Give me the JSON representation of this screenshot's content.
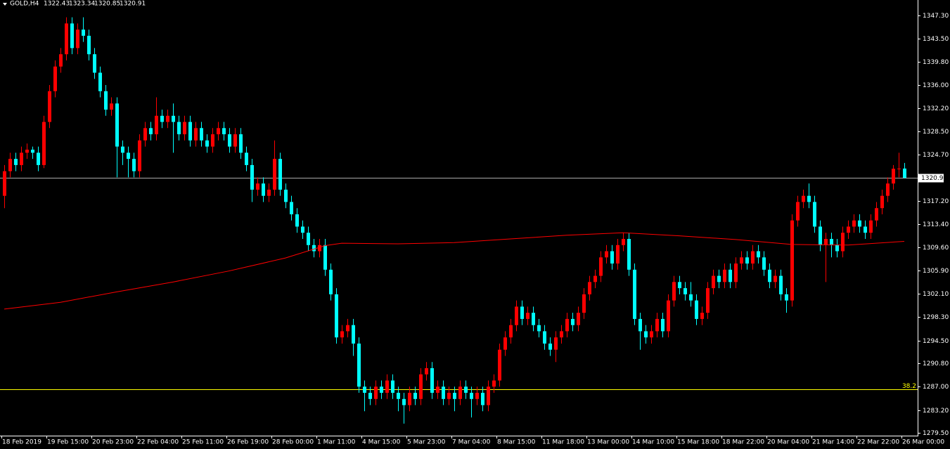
{
  "chart_data": {
    "type": "candlestick",
    "symbol": "GOLD,H4",
    "up_color": "#ff0000",
    "down_color": "#00ffff",
    "background": "#000000",
    "grid": false,
    "ylim": [
      1279.04,
      1349.81
    ],
    "yticks": [
      {
        "value": 1347.3,
        "label": "1347.30"
      },
      {
        "value": 1343.5,
        "label": "1343.50"
      },
      {
        "value": 1339.8,
        "label": "1339.80"
      },
      {
        "value": 1336.0,
        "label": "1336.00"
      },
      {
        "value": 1332.2,
        "label": "1332.20"
      },
      {
        "value": 1328.5,
        "label": "1328.50"
      },
      {
        "value": 1324.7,
        "label": "1324.70"
      },
      {
        "value": 1317.2,
        "label": "1317.20"
      },
      {
        "value": 1313.4,
        "label": "1313.40"
      },
      {
        "value": 1309.6,
        "label": "1309.60"
      },
      {
        "value": 1305.9,
        "label": "1305.90"
      },
      {
        "value": 1302.1,
        "label": "1302.10"
      },
      {
        "value": 1298.3,
        "label": "1298.30"
      },
      {
        "value": 1294.5,
        "label": "1294.50"
      },
      {
        "value": 1290.8,
        "label": "1290.80"
      },
      {
        "value": 1287.0,
        "label": "1287.00"
      },
      {
        "value": 1283.2,
        "label": "1283.20"
      },
      {
        "value": 1279.5,
        "label": "1279.50"
      }
    ],
    "fib_level": {
      "label": "38.2",
      "price": 1286.6,
      "color": "#ffff00"
    },
    "categories": [
      "18 Feb 2019",
      null,
      null,
      null,
      null,
      null,
      null,
      null,
      "19 Feb 15:00",
      null,
      null,
      null,
      null,
      null,
      null,
      null,
      "20 Feb 23:00",
      null,
      null,
      null,
      null,
      null,
      null,
      null,
      "22 Feb 04:00",
      null,
      null,
      null,
      null,
      null,
      null,
      null,
      "25 Feb 11:00",
      null,
      null,
      null,
      null,
      null,
      null,
      null,
      "26 Feb 19:00",
      null,
      null,
      null,
      null,
      null,
      null,
      null,
      "28 Feb 00:00",
      null,
      null,
      null,
      null,
      null,
      null,
      null,
      "1 Mar 11:00",
      null,
      null,
      null,
      null,
      null,
      null,
      null,
      "4 Mar 15:00",
      null,
      null,
      null,
      null,
      null,
      null,
      null,
      "5 Mar 23:00",
      null,
      null,
      null,
      null,
      null,
      null,
      null,
      "7 Mar 04:00",
      null,
      null,
      null,
      null,
      null,
      null,
      null,
      "8 Mar 15:00",
      null,
      null,
      null,
      null,
      null,
      null,
      null,
      "11 Mar 18:00",
      null,
      null,
      null,
      null,
      null,
      null,
      null,
      "13 Mar 00:00",
      null,
      null,
      null,
      null,
      null,
      null,
      null,
      "14 Mar 10:00",
      null,
      null,
      null,
      null,
      null,
      null,
      null,
      "15 Mar 18:00",
      null,
      null,
      null,
      null,
      null,
      null,
      null,
      "18 Mar 22:00",
      null,
      null,
      null,
      null,
      null,
      null,
      null,
      "20 Mar 04:00",
      null,
      null,
      null,
      null,
      null,
      null,
      null,
      "21 Mar 14:00",
      null,
      null,
      null,
      null,
      null,
      null,
      null,
      "22 Mar 22:00",
      null,
      null,
      null,
      null,
      null,
      null,
      null,
      "26 Mar 00:00"
    ],
    "candles": [
      [
        1318,
        1323,
        1316,
        1322
      ],
      [
        1322,
        1325,
        1321,
        1324
      ],
      [
        1324,
        1325,
        1322,
        1323
      ],
      [
        1323,
        1326,
        1322,
        1325
      ],
      [
        1325,
        1326.5,
        1324,
        1325.5
      ],
      [
        1325.5,
        1326,
        1324,
        1325
      ],
      [
        1325,
        1326,
        1322,
        1323
      ],
      [
        1323,
        1331,
        1322.5,
        1330
      ],
      [
        1330,
        1336,
        1329,
        1335
      ],
      [
        1335,
        1340,
        1334,
        1339
      ],
      [
        1339,
        1342,
        1338,
        1341
      ],
      [
        1341,
        1347,
        1340,
        1346
      ],
      [
        1346,
        1347,
        1341,
        1342
      ],
      [
        1342,
        1346,
        1341,
        1345
      ],
      [
        1345,
        1347,
        1343,
        1344
      ],
      [
        1344,
        1345,
        1340,
        1341
      ],
      [
        1341,
        1342,
        1337,
        1338
      ],
      [
        1338,
        1339,
        1334,
        1335
      ],
      [
        1335,
        1336,
        1331,
        1332
      ],
      [
        1332,
        1334,
        1331,
        1333
      ],
      [
        1333,
        1334,
        1321,
        1326
      ],
      [
        1326,
        1327,
        1323,
        1325
      ],
      [
        1325,
        1326,
        1321,
        1324
      ],
      [
        1324,
        1325,
        1321,
        1322
      ],
      [
        1322,
        1328,
        1321,
        1327
      ],
      [
        1327,
        1330,
        1326,
        1329
      ],
      [
        1329,
        1330,
        1327,
        1328
      ],
      [
        1328,
        1334,
        1327,
        1331
      ],
      [
        1331,
        1332,
        1329,
        1330
      ],
      [
        1330,
        1332,
        1329,
        1331
      ],
      [
        1331,
        1333,
        1325,
        1330
      ],
      [
        1330,
        1331,
        1327,
        1328
      ],
      [
        1328,
        1331,
        1327,
        1330
      ],
      [
        1330,
        1331,
        1326,
        1327
      ],
      [
        1327,
        1330,
        1326,
        1329
      ],
      [
        1329,
        1330,
        1326,
        1327
      ],
      [
        1327,
        1328,
        1325,
        1326
      ],
      [
        1326,
        1329,
        1325,
        1328
      ],
      [
        1328,
        1330,
        1327,
        1329
      ],
      [
        1329,
        1330,
        1327,
        1328
      ],
      [
        1328,
        1329,
        1325,
        1326
      ],
      [
        1326,
        1329,
        1325,
        1328
      ],
      [
        1328,
        1329,
        1324,
        1325
      ],
      [
        1325,
        1326,
        1322,
        1323
      ],
      [
        1323,
        1324,
        1317,
        1319
      ],
      [
        1319,
        1321,
        1318,
        1320
      ],
      [
        1320,
        1321,
        1317,
        1318
      ],
      [
        1318,
        1320,
        1317,
        1319
      ],
      [
        1319,
        1327,
        1318,
        1324
      ],
      [
        1324,
        1325,
        1318,
        1319
      ],
      [
        1319,
        1320,
        1316,
        1317
      ],
      [
        1317,
        1318,
        1314,
        1315
      ],
      [
        1315,
        1316,
        1312,
        1313
      ],
      [
        1313,
        1314,
        1311,
        1312
      ],
      [
        1312,
        1313,
        1309,
        1310
      ],
      [
        1310,
        1311,
        1308,
        1309
      ],
      [
        1309,
        1311,
        1308,
        1310
      ],
      [
        1310,
        1311,
        1305,
        1306
      ],
      [
        1306,
        1307,
        1301,
        1302
      ],
      [
        1302,
        1303,
        1294,
        1295
      ],
      [
        1295,
        1297,
        1294,
        1296
      ],
      [
        1296,
        1298,
        1295,
        1297
      ],
      [
        1297,
        1298,
        1292,
        1294
      ],
      [
        1294,
        1295,
        1286,
        1287
      ],
      [
        1287,
        1288,
        1283,
        1286
      ],
      [
        1286,
        1287,
        1284,
        1285
      ],
      [
        1285,
        1288,
        1284,
        1287
      ],
      [
        1287,
        1288,
        1285,
        1286
      ],
      [
        1286,
        1289,
        1285,
        1288
      ],
      [
        1288,
        1289,
        1285,
        1286
      ],
      [
        1286,
        1287,
        1283,
        1285
      ],
      [
        1285,
        1286,
        1281,
        1284
      ],
      [
        1284,
        1287,
        1283,
        1286
      ],
      [
        1286,
        1287,
        1284,
        1285
      ],
      [
        1285,
        1290,
        1284,
        1289
      ],
      [
        1289,
        1291,
        1288,
        1290
      ],
      [
        1290,
        1291,
        1285,
        1286
      ],
      [
        1286,
        1288,
        1285,
        1287
      ],
      [
        1287,
        1288,
        1284,
        1285
      ],
      [
        1285,
        1287,
        1284,
        1286
      ],
      [
        1286,
        1287,
        1283,
        1285
      ],
      [
        1285,
        1288,
        1284,
        1287
      ],
      [
        1287,
        1288,
        1285,
        1286
      ],
      [
        1286,
        1287,
        1282,
        1285
      ],
      [
        1285,
        1287,
        1284,
        1286
      ],
      [
        1286,
        1287,
        1283,
        1284
      ],
      [
        1284,
        1288,
        1283,
        1287
      ],
      [
        1287,
        1289,
        1286,
        1288
      ],
      [
        1288,
        1294,
        1287,
        1293
      ],
      [
        1293,
        1296,
        1292,
        1295
      ],
      [
        1295,
        1298,
        1294,
        1297
      ],
      [
        1297,
        1301,
        1296,
        1300
      ],
      [
        1300,
        1301,
        1297,
        1298
      ],
      [
        1298,
        1300,
        1297,
        1299
      ],
      [
        1299,
        1300,
        1296,
        1297
      ],
      [
        1297,
        1298,
        1295,
        1296
      ],
      [
        1296,
        1297,
        1293,
        1294
      ],
      [
        1294,
        1295,
        1292,
        1293
      ],
      [
        1293,
        1296,
        1291,
        1295
      ],
      [
        1295,
        1297,
        1294,
        1296
      ],
      [
        1296,
        1299,
        1295,
        1298
      ],
      [
        1298,
        1299,
        1296,
        1297
      ],
      [
        1297,
        1300,
        1296,
        1299
      ],
      [
        1299,
        1303,
        1298,
        1302
      ],
      [
        1302,
        1305,
        1301,
        1304
      ],
      [
        1304,
        1306,
        1303,
        1305
      ],
      [
        1305,
        1309,
        1304,
        1308
      ],
      [
        1308,
        1310,
        1307,
        1309
      ],
      [
        1309,
        1310,
        1306,
        1307
      ],
      [
        1307,
        1311,
        1306,
        1310
      ],
      [
        1310,
        1312,
        1309,
        1311
      ],
      [
        1311,
        1312,
        1305,
        1306
      ],
      [
        1306,
        1307,
        1297,
        1298
      ],
      [
        1298,
        1299,
        1293,
        1296
      ],
      [
        1296,
        1297,
        1294,
        1295
      ],
      [
        1295,
        1297,
        1294,
        1296
      ],
      [
        1296,
        1299,
        1295,
        1298
      ],
      [
        1298,
        1299,
        1295,
        1296
      ],
      [
        1296,
        1302,
        1295,
        1301
      ],
      [
        1301,
        1305,
        1300,
        1304
      ],
      [
        1304,
        1305,
        1302,
        1303
      ],
      [
        1303,
        1304,
        1301,
        1302
      ],
      [
        1302,
        1304,
        1300,
        1301
      ],
      [
        1301,
        1302,
        1297,
        1298
      ],
      [
        1298,
        1300,
        1297,
        1299
      ],
      [
        1299,
        1304,
        1298,
        1303
      ],
      [
        1303,
        1306,
        1302,
        1305
      ],
      [
        1305,
        1306,
        1303,
        1304
      ],
      [
        1304,
        1307,
        1303,
        1306
      ],
      [
        1306,
        1307,
        1303,
        1304
      ],
      [
        1304,
        1308,
        1303,
        1307
      ],
      [
        1307,
        1309,
        1306,
        1308
      ],
      [
        1308,
        1309,
        1306,
        1307
      ],
      [
        1307,
        1310,
        1306,
        1309
      ],
      [
        1309,
        1310,
        1307,
        1308
      ],
      [
        1308,
        1309,
        1305,
        1306
      ],
      [
        1306,
        1307,
        1303,
        1304
      ],
      [
        1304,
        1306,
        1303,
        1305
      ],
      [
        1305,
        1306,
        1301,
        1302
      ],
      [
        1302,
        1303,
        1299,
        1301
      ],
      [
        1301,
        1315,
        1300,
        1314
      ],
      [
        1314,
        1318,
        1313,
        1317
      ],
      [
        1317,
        1319,
        1316,
        1318
      ],
      [
        1318,
        1320,
        1316,
        1317
      ],
      [
        1317,
        1318,
        1312,
        1313
      ],
      [
        1313,
        1314,
        1309,
        1310
      ],
      [
        1310,
        1312,
        1304,
        1311
      ],
      [
        1311,
        1312,
        1308,
        1310
      ],
      [
        1310,
        1311,
        1308,
        1309
      ],
      [
        1309,
        1313,
        1308,
        1312
      ],
      [
        1312,
        1314,
        1311,
        1313
      ],
      [
        1313,
        1315,
        1312,
        1314
      ],
      [
        1314,
        1315,
        1312,
        1313
      ],
      [
        1313,
        1314,
        1311,
        1312
      ],
      [
        1312,
        1315,
        1311,
        1314
      ],
      [
        1314,
        1317,
        1313,
        1316
      ],
      [
        1316,
        1319,
        1315,
        1318
      ],
      [
        1318,
        1321,
        1317,
        1320
      ],
      [
        1320,
        1323,
        1319,
        1322.4
      ],
      [
        1322.4,
        1325,
        1321,
        1322.43
      ],
      [
        1322.43,
        1323.34,
        1320.85,
        1320.91
      ]
    ],
    "moving_average": {
      "color": "#ff0000",
      "x": [
        0,
        10,
        20,
        30,
        40,
        50,
        57,
        60,
        70,
        80,
        90,
        100,
        110,
        120,
        130,
        140,
        150,
        160
      ],
      "values": [
        1299.6,
        1300.7,
        1302.4,
        1304.0,
        1305.8,
        1307.9,
        1309.9,
        1310.3,
        1310.2,
        1310.4,
        1311.0,
        1311.6,
        1312.0,
        1311.5,
        1310.9,
        1310.1,
        1310.0,
        1310.6
      ]
    }
  }
}
